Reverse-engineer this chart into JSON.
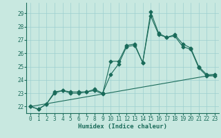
{
  "title": "",
  "xlabel": "Humidex (Indice chaleur)",
  "ylabel": "",
  "bg_color": "#c8e8e0",
  "line_color": "#1a6b5a",
  "xlim": [
    -0.5,
    23.5
  ],
  "ylim": [
    21.5,
    29.8
  ],
  "yticks": [
    22,
    23,
    24,
    25,
    26,
    27,
    28,
    29
  ],
  "xticks": [
    0,
    1,
    2,
    3,
    4,
    5,
    6,
    7,
    8,
    9,
    10,
    11,
    12,
    13,
    14,
    15,
    16,
    17,
    18,
    19,
    20,
    21,
    22,
    23
  ],
  "series1_x": [
    0,
    1,
    2,
    3,
    4,
    5,
    6,
    7,
    8,
    9,
    10,
    11,
    12,
    13,
    14,
    15,
    16,
    17,
    18,
    19,
    20,
    21,
    22,
    23
  ],
  "series1_y": [
    22.0,
    21.8,
    22.2,
    23.1,
    23.2,
    23.1,
    23.1,
    23.1,
    23.2,
    22.95,
    25.4,
    25.4,
    26.6,
    26.7,
    25.3,
    29.1,
    27.5,
    27.2,
    27.4,
    26.7,
    26.4,
    25.0,
    24.4,
    24.4
  ],
  "series2_x": [
    0,
    1,
    2,
    3,
    4,
    5,
    6,
    7,
    8,
    9,
    10,
    11,
    12,
    13,
    14,
    15,
    16,
    17,
    18,
    19,
    20,
    21,
    22,
    23
  ],
  "series2_y": [
    22.0,
    21.8,
    22.2,
    23.0,
    23.2,
    23.0,
    23.0,
    23.1,
    23.3,
    23.0,
    24.4,
    25.2,
    26.5,
    26.6,
    25.3,
    28.8,
    27.4,
    27.2,
    27.3,
    26.5,
    26.3,
    24.9,
    24.3,
    24.3
  ],
  "series3_x": [
    0,
    23
  ],
  "series3_y": [
    22.0,
    24.4
  ],
  "grid_color": "#9ccfcf",
  "marker": "D",
  "markersize": 2.5,
  "tick_fontsize": 5.5,
  "xlabel_fontsize": 6.5
}
